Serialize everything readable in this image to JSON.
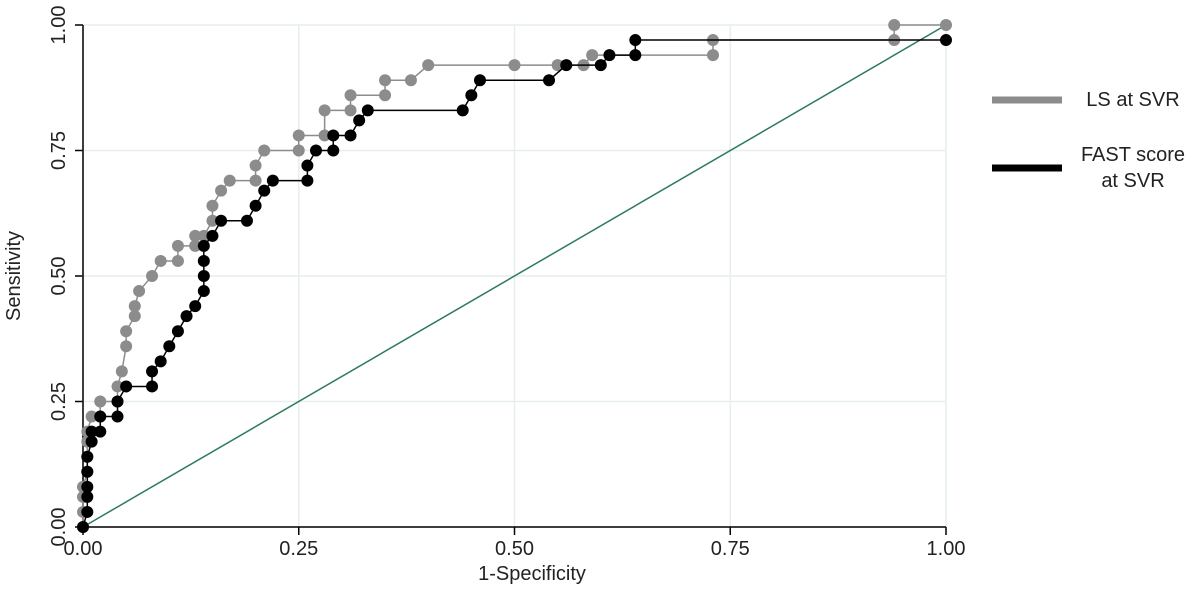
{
  "chart_data": {
    "type": "line",
    "xlabel": "1-Specificity",
    "ylabel": "Sensitivity",
    "xlim": [
      0,
      1
    ],
    "ylim": [
      0,
      1
    ],
    "xticks": [
      {
        "value": 0,
        "label": "0.00"
      },
      {
        "value": 0.25,
        "label": "0.25"
      },
      {
        "value": 0.5,
        "label": "0.50"
      },
      {
        "value": 0.75,
        "label": "0.75"
      },
      {
        "value": 1,
        "label": "1.00"
      }
    ],
    "yticks": [
      {
        "value": 0,
        "label": "0.00"
      },
      {
        "value": 0.25,
        "label": "0.25"
      },
      {
        "value": 0.5,
        "label": "0.50"
      },
      {
        "value": 0.75,
        "label": "0.75"
      },
      {
        "value": 1,
        "label": "1.00"
      }
    ],
    "grid": true,
    "legend": "right",
    "series": [
      {
        "name": "LS at SVR",
        "color": "#8c8c8c",
        "x": [
          0,
          0,
          0,
          0,
          0.005,
          0.005,
          0.005,
          0.005,
          0.01,
          0.02,
          0.02,
          0.04,
          0.04,
          0.045,
          0.05,
          0.05,
          0.06,
          0.06,
          0.065,
          0.08,
          0.09,
          0.11,
          0.11,
          0.13,
          0.13,
          0.14,
          0.15,
          0.15,
          0.16,
          0.17,
          0.2,
          0.2,
          0.21,
          0.25,
          0.25,
          0.28,
          0.28,
          0.31,
          0.31,
          0.35,
          0.35,
          0.38,
          0.4,
          0.5,
          0.55,
          0.58,
          0.59,
          0.73,
          0.73,
          0.94,
          0.94,
          1
        ],
        "values": [
          0,
          0.03,
          0.06,
          0.08,
          0.11,
          0.14,
          0.17,
          0.19,
          0.22,
          0.22,
          0.25,
          0.25,
          0.28,
          0.31,
          0.36,
          0.39,
          0.42,
          0.44,
          0.47,
          0.5,
          0.53,
          0.53,
          0.56,
          0.56,
          0.58,
          0.58,
          0.61,
          0.64,
          0.67,
          0.69,
          0.69,
          0.72,
          0.75,
          0.75,
          0.78,
          0.78,
          0.83,
          0.83,
          0.86,
          0.86,
          0.89,
          0.89,
          0.92,
          0.92,
          0.92,
          0.92,
          0.94,
          0.94,
          0.97,
          0.97,
          1,
          1
        ]
      },
      {
        "name": "FAST score at SVR",
        "color": "#000000",
        "x": [
          0,
          0.005,
          0.005,
          0.005,
          0.005,
          0.005,
          0.01,
          0.01,
          0.02,
          0.02,
          0.04,
          0.04,
          0.05,
          0.08,
          0.08,
          0.09,
          0.1,
          0.11,
          0.12,
          0.13,
          0.14,
          0.14,
          0.14,
          0.14,
          0.15,
          0.16,
          0.19,
          0.2,
          0.21,
          0.22,
          0.26,
          0.26,
          0.27,
          0.29,
          0.29,
          0.31,
          0.32,
          0.33,
          0.44,
          0.45,
          0.46,
          0.54,
          0.56,
          0.6,
          0.61,
          0.64,
          0.64,
          1
        ],
        "values": [
          0,
          0.03,
          0.06,
          0.08,
          0.11,
          0.14,
          0.17,
          0.19,
          0.19,
          0.22,
          0.22,
          0.25,
          0.28,
          0.28,
          0.31,
          0.33,
          0.36,
          0.39,
          0.42,
          0.44,
          0.47,
          0.5,
          0.53,
          0.56,
          0.58,
          0.61,
          0.61,
          0.64,
          0.67,
          0.69,
          0.69,
          0.72,
          0.75,
          0.75,
          0.78,
          0.78,
          0.81,
          0.83,
          0.83,
          0.86,
          0.89,
          0.89,
          0.92,
          0.92,
          0.94,
          0.94,
          0.97,
          0.97
        ]
      }
    ]
  }
}
